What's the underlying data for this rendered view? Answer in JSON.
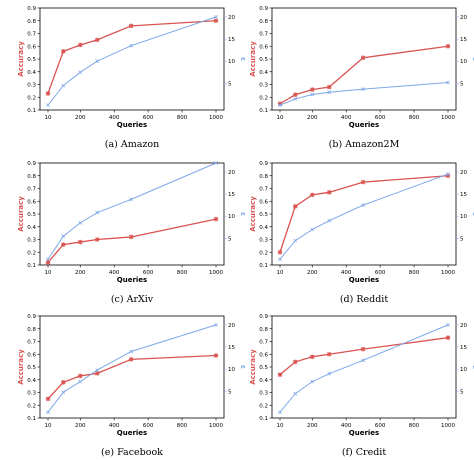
{
  "colors": {
    "accuracy": "#d9534f",
    "epsilon": "#7fa7e8"
  },
  "chart_data": [
    {
      "type": "line",
      "caption": "(a) Amazon",
      "xlabel": "Queries",
      "ylabel": "Accuracy",
      "y2label": "ε",
      "x": [
        10,
        100,
        200,
        300,
        500,
        1000
      ],
      "xticks": [
        10,
        200,
        400,
        600,
        800,
        1000
      ],
      "ylim": [
        0.1,
        0.9
      ],
      "yticks": [
        0.1,
        0.2,
        0.3,
        0.4,
        0.5,
        0.6,
        0.7,
        0.8,
        0.9
      ],
      "y2lim": [
        -1,
        22
      ],
      "y2ticks": [
        5,
        10,
        15,
        20
      ],
      "series": [
        {
          "axis": "left",
          "values": [
            0.23,
            0.56,
            0.61,
            0.65,
            0.76,
            0.8
          ]
        },
        {
          "axis": "right",
          "values": [
            0.1,
            4.5,
            7.5,
            10,
            13.5,
            20
          ]
        }
      ]
    },
    {
      "type": "line",
      "caption": "(b) Amazon2M",
      "xlabel": "Queries",
      "ylabel": "Accuracy",
      "y2label": "ε",
      "x": [
        10,
        100,
        200,
        300,
        500,
        1000
      ],
      "xticks": [
        10,
        200,
        400,
        600,
        800,
        1000
      ],
      "ylim": [
        0.1,
        0.9
      ],
      "yticks": [
        0.1,
        0.2,
        0.3,
        0.4,
        0.5,
        0.6,
        0.7,
        0.8,
        0.9
      ],
      "y2lim": [
        -1,
        22
      ],
      "y2ticks": [
        5,
        10,
        15,
        20
      ],
      "series": [
        {
          "axis": "left",
          "values": [
            0.15,
            0.22,
            0.26,
            0.28,
            0.51,
            0.6
          ]
        },
        {
          "axis": "right",
          "values": [
            0.1,
            1.5,
            2.5,
            3.0,
            3.7,
            5.2
          ]
        }
      ]
    },
    {
      "type": "line",
      "caption": "(c) ArXiv",
      "xlabel": "Queries",
      "ylabel": "Accuracy",
      "y2label": "ε",
      "x": [
        10,
        100,
        200,
        300,
        500,
        1000
      ],
      "xticks": [
        10,
        200,
        400,
        600,
        800,
        1000
      ],
      "ylim": [
        0.1,
        0.9
      ],
      "yticks": [
        0.1,
        0.2,
        0.3,
        0.4,
        0.5,
        0.6,
        0.7,
        0.8,
        0.9
      ],
      "y2lim": [
        -1,
        22
      ],
      "y2ticks": [
        5,
        10,
        15,
        20
      ],
      "series": [
        {
          "axis": "left",
          "values": [
            0.12,
            0.26,
            0.28,
            0.3,
            0.32,
            0.46
          ]
        },
        {
          "axis": "right",
          "values": [
            0.3,
            5.5,
            8.5,
            10.8,
            13.8,
            22.0
          ]
        }
      ]
    },
    {
      "type": "line",
      "caption": "(d) Reddit",
      "xlabel": "Queries",
      "ylabel": "Accuracy",
      "y2label": "ε",
      "x": [
        10,
        100,
        200,
        300,
        500,
        1000
      ],
      "xticks": [
        10,
        200,
        400,
        600,
        800,
        1000
      ],
      "ylim": [
        0.1,
        0.9
      ],
      "yticks": [
        0.1,
        0.2,
        0.3,
        0.4,
        0.5,
        0.6,
        0.7,
        0.8,
        0.9
      ],
      "y2lim": [
        -1,
        22
      ],
      "y2ticks": [
        5,
        10,
        15,
        20
      ],
      "series": [
        {
          "axis": "left",
          "values": [
            0.2,
            0.56,
            0.65,
            0.67,
            0.75,
            0.8
          ]
        },
        {
          "axis": "right",
          "values": [
            0.3,
            4.5,
            7.0,
            9.0,
            12.5,
            19.5
          ]
        }
      ]
    },
    {
      "type": "line",
      "caption": "(e) Facebook",
      "xlabel": "Queries",
      "ylabel": "Accuracy",
      "y2label": "ε",
      "x": [
        10,
        100,
        200,
        300,
        500,
        1000
      ],
      "xticks": [
        10,
        200,
        400,
        600,
        800,
        1000
      ],
      "ylim": [
        0.1,
        0.9
      ],
      "yticks": [
        0.1,
        0.2,
        0.3,
        0.4,
        0.5,
        0.6,
        0.7,
        0.8,
        0.9
      ],
      "y2lim": [
        -1,
        22
      ],
      "y2ticks": [
        5,
        10,
        15,
        20
      ],
      "series": [
        {
          "axis": "left",
          "values": [
            0.25,
            0.38,
            0.43,
            0.45,
            0.56,
            0.59
          ]
        },
        {
          "axis": "right",
          "values": [
            0.3,
            4.8,
            7.2,
            9.8,
            14.0,
            20.0
          ]
        }
      ]
    },
    {
      "type": "line",
      "caption": "(f) Credit",
      "xlabel": "Queries",
      "ylabel": "Accuracy",
      "y2label": "ε",
      "x": [
        10,
        100,
        200,
        300,
        500,
        1000
      ],
      "xticks": [
        10,
        200,
        400,
        600,
        800,
        1000
      ],
      "ylim": [
        0.1,
        0.9
      ],
      "yticks": [
        0.1,
        0.2,
        0.3,
        0.4,
        0.5,
        0.6,
        0.7,
        0.8,
        0.9
      ],
      "y2lim": [
        -1,
        22
      ],
      "y2ticks": [
        5,
        10,
        15,
        20
      ],
      "series": [
        {
          "axis": "left",
          "values": [
            0.44,
            0.54,
            0.58,
            0.6,
            0.64,
            0.73
          ]
        },
        {
          "axis": "right",
          "values": [
            0.3,
            4.5,
            7.2,
            9.0,
            12.0,
            20.0
          ]
        }
      ]
    }
  ]
}
